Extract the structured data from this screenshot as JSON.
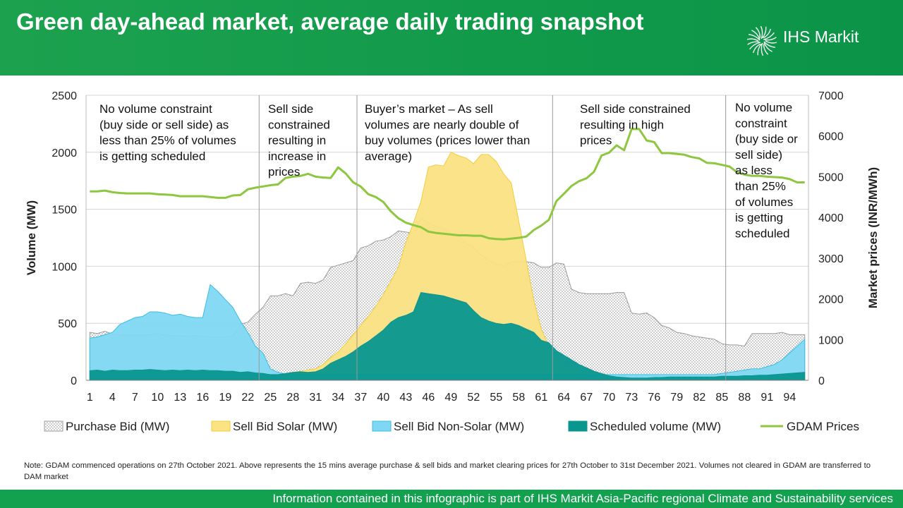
{
  "header": {
    "title": "Green day-ahead market, average daily trading snapshot",
    "logo_text": "IHS Markit"
  },
  "colors": {
    "header_green": "#139c4c",
    "purchase": "#9a9a9a",
    "solar_fill": "#fbe283",
    "solar_line": "#f2cc3d",
    "nonsolar_fill": "#7fd8f3",
    "nonsolar_line": "#3bbde6",
    "scheduled": "#08968f",
    "price_line": "#8dc73f"
  },
  "chart_data": {
    "type": "area",
    "title": "",
    "xlabel": "",
    "ylabel": "Volume (MW)",
    "y2label": "Market prices (INR/MWh)",
    "x": [
      1,
      2,
      3,
      4,
      5,
      6,
      7,
      8,
      9,
      10,
      11,
      12,
      13,
      14,
      15,
      16,
      17,
      18,
      19,
      20,
      21,
      22,
      23,
      24,
      25,
      26,
      27,
      28,
      29,
      30,
      31,
      32,
      33,
      34,
      35,
      36,
      37,
      38,
      39,
      40,
      41,
      42,
      43,
      44,
      45,
      46,
      47,
      48,
      49,
      50,
      51,
      52,
      53,
      54,
      55,
      56,
      57,
      58,
      59,
      60,
      61,
      62,
      63,
      64,
      65,
      66,
      67,
      68,
      69,
      70,
      71,
      72,
      73,
      74,
      75,
      76,
      77,
      78,
      79,
      80,
      81,
      82,
      83,
      84,
      85,
      86,
      87,
      88,
      89,
      90,
      91,
      92,
      93,
      94,
      95,
      96
    ],
    "x_ticks": [
      1,
      4,
      7,
      10,
      13,
      16,
      19,
      22,
      25,
      28,
      31,
      34,
      37,
      40,
      43,
      46,
      49,
      52,
      55,
      58,
      61,
      64,
      67,
      70,
      73,
      76,
      79,
      82,
      85,
      88,
      91,
      94
    ],
    "ylim": [
      0,
      2500
    ],
    "y_ticks": [
      0,
      500,
      1000,
      1500,
      2000,
      2500
    ],
    "y2lim": [
      0,
      7000
    ],
    "y2_ticks": [
      0,
      1000,
      2000,
      3000,
      4000,
      5000,
      6000,
      7000
    ],
    "grid": true,
    "legend_position": "bottom",
    "series": [
      {
        "name": "Purchase Bid (MW)",
        "axis": "left",
        "style": "dotted-area",
        "values": [
          420,
          410,
          430,
          405,
          400,
          400,
          395,
          395,
          400,
          410,
          395,
          390,
          390,
          385,
          390,
          385,
          380,
          380,
          380,
          385,
          490,
          510,
          580,
          640,
          740,
          740,
          760,
          740,
          850,
          860,
          850,
          880,
          990,
          1010,
          1030,
          1050,
          1160,
          1180,
          1220,
          1230,
          1260,
          1310,
          1300,
          1290,
          1420,
          1380,
          1350,
          1330,
          1290,
          1270,
          1200,
          1170,
          1100,
          1050,
          1020,
          1000,
          1040,
          1040,
          1040,
          1030,
          990,
          990,
          1030,
          1020,
          800,
          770,
          760,
          760,
          760,
          760,
          770,
          770,
          590,
          580,
          590,
          550,
          480,
          460,
          420,
          410,
          390,
          380,
          370,
          360,
          320,
          310,
          310,
          300,
          410,
          410,
          410,
          410,
          420,
          400,
          400,
          400
        ]
      },
      {
        "name": "Sell Bid Solar (MW)",
        "axis": "left",
        "style": "area",
        "values": [
          0,
          0,
          0,
          0,
          0,
          0,
          0,
          0,
          0,
          0,
          0,
          0,
          0,
          0,
          0,
          0,
          0,
          0,
          0,
          0,
          0,
          0,
          0,
          0,
          20,
          40,
          60,
          70,
          80,
          90,
          100,
          140,
          200,
          250,
          320,
          400,
          480,
          560,
          650,
          750,
          870,
          990,
          1210,
          1380,
          1570,
          1870,
          1890,
          1880,
          2000,
          1970,
          1950,
          1900,
          1980,
          1980,
          1920,
          1810,
          1730,
          1400,
          1050,
          700,
          450,
          300,
          200,
          150,
          110,
          80,
          50,
          20,
          0,
          0,
          0,
          0,
          0,
          0,
          0,
          0,
          0,
          0,
          0,
          0,
          0,
          0,
          0,
          0,
          0,
          0,
          0,
          0,
          0,
          0,
          0,
          0,
          0,
          0,
          0,
          0
        ]
      },
      {
        "name": "Sell Bid Non-Solar (MW)",
        "axis": "left",
        "style": "area",
        "values": [
          370,
          380,
          400,
          420,
          490,
          520,
          550,
          560,
          600,
          600,
          590,
          570,
          580,
          560,
          550,
          550,
          840,
          780,
          710,
          640,
          520,
          420,
          300,
          240,
          100,
          70,
          55,
          50,
          50,
          50,
          50,
          50,
          50,
          50,
          50,
          50,
          50,
          50,
          50,
          50,
          50,
          50,
          50,
          50,
          50,
          50,
          50,
          50,
          50,
          50,
          50,
          50,
          50,
          50,
          50,
          50,
          50,
          50,
          50,
          50,
          50,
          50,
          50,
          50,
          50,
          50,
          50,
          50,
          50,
          50,
          50,
          50,
          50,
          50,
          50,
          50,
          50,
          50,
          50,
          50,
          50,
          50,
          50,
          50,
          60,
          70,
          80,
          90,
          100,
          100,
          120,
          140,
          180,
          240,
          300,
          360
        ]
      },
      {
        "name": "Scheduled volume (MW)",
        "axis": "left",
        "style": "area",
        "values": [
          85,
          90,
          80,
          90,
          85,
          85,
          90,
          90,
          95,
          90,
          85,
          90,
          85,
          90,
          85,
          90,
          85,
          85,
          80,
          80,
          70,
          75,
          65,
          60,
          50,
          50,
          60,
          70,
          75,
          70,
          75,
          100,
          150,
          180,
          210,
          250,
          300,
          340,
          390,
          440,
          510,
          550,
          570,
          600,
          770,
          760,
          750,
          740,
          720,
          700,
          680,
          610,
          550,
          520,
          500,
          490,
          500,
          480,
          450,
          420,
          350,
          330,
          260,
          220,
          180,
          140,
          110,
          80,
          60,
          40,
          30,
          25,
          20,
          20,
          20,
          25,
          25,
          30,
          30,
          30,
          30,
          30,
          30,
          30,
          35,
          35,
          35,
          40,
          40,
          45,
          45,
          50,
          55,
          60,
          65,
          70
        ]
      },
      {
        "name": "GDAM Prices",
        "axis": "right",
        "style": "line",
        "values": [
          4640,
          4640,
          4660,
          4620,
          4600,
          4590,
          4590,
          4590,
          4590,
          4570,
          4560,
          4550,
          4520,
          4520,
          4520,
          4520,
          4500,
          4480,
          4480,
          4540,
          4550,
          4690,
          4730,
          4760,
          4790,
          4810,
          4970,
          5000,
          5020,
          5070,
          5000,
          4980,
          4970,
          5230,
          5080,
          4860,
          4760,
          4570,
          4500,
          4380,
          4150,
          3980,
          3870,
          3810,
          3760,
          3650,
          3620,
          3600,
          3580,
          3560,
          3560,
          3550,
          3550,
          3490,
          3470,
          3460,
          3480,
          3500,
          3530,
          3690,
          3800,
          3940,
          4400,
          4580,
          4770,
          4890,
          4960,
          5120,
          5520,
          5590,
          5770,
          5650,
          6170,
          6170,
          5890,
          5850,
          5580,
          5580,
          5560,
          5540,
          5480,
          5450,
          5340,
          5330,
          5290,
          5250,
          5110,
          5050,
          5020,
          5020,
          5000,
          4990,
          4980,
          4940,
          4860,
          4860
        ]
      }
    ],
    "annotations": [
      "No volume constraint (buy side or sell side) as less than 25% of volumes is getting scheduled",
      "Sell side constrained resulting in increase in prices",
      "Buyer’s market – As sell volumes are nearly double of buy volumes (prices lower than average)",
      "Sell side constrained resulting in high prices",
      "No volume constraint (buy side or sell side) as less than 25% of volumes is getting scheduled"
    ],
    "annotation_lines": [
      [
        "No volume constraint",
        "(buy side or sell side) as",
        "less than 25% of volumes",
        "is getting scheduled"
      ],
      [
        "Sell side",
        "constrained",
        "resulting in",
        "increase in",
        "prices"
      ],
      [
        "Buyer’s market – As sell",
        "volumes are nearly double of",
        "buy volumes (prices lower than",
        "average)"
      ],
      [
        "Sell side constrained",
        "resulting in high",
        "prices"
      ],
      [
        "No volume",
        "constraint",
        "(buy side or",
        "sell side)",
        "as less",
        "than 25%",
        "of volumes",
        "is getting",
        "scheduled"
      ]
    ],
    "region_dividers_x": [
      23.5,
      36.5,
      62.5,
      85.5
    ]
  },
  "note": "Note: GDAM commenced operations on 27th October 2021. Above represents the 15 mins average  purchase & sell bids and market clearing prices for 27th October to 31st December 2021. Volumes not cleared in GDAM are transferred to DAM market",
  "footer": "Information contained in this infographic is part of IHS Markit Asia-Pacific regional Climate and Sustainability services"
}
